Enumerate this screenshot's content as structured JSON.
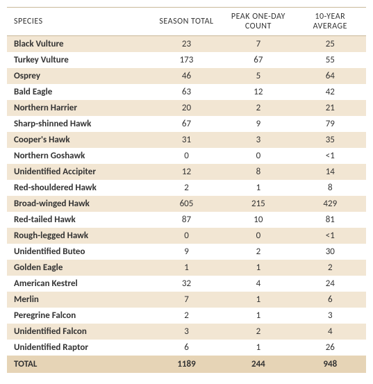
{
  "table": {
    "columns": [
      "SPECIES",
      "SEASON TOTAL",
      "PEAK ONE-DAY COUNT",
      "10-YEAR AVERAGE"
    ],
    "rows": [
      {
        "species": "Black Vulture",
        "season_total": "23",
        "peak": "7",
        "avg": "25"
      },
      {
        "species": "Turkey Vulture",
        "season_total": "173",
        "peak": "67",
        "avg": "55"
      },
      {
        "species": "Osprey",
        "season_total": "46",
        "peak": "5",
        "avg": "64"
      },
      {
        "species": "Bald Eagle",
        "season_total": "63",
        "peak": "12",
        "avg": "42"
      },
      {
        "species": "Northern Harrier",
        "season_total": "20",
        "peak": "2",
        "avg": "21"
      },
      {
        "species": "Sharp-shinned Hawk",
        "season_total": "67",
        "peak": "9",
        "avg": "79"
      },
      {
        "species": "Cooper's Hawk",
        "season_total": "31",
        "peak": "3",
        "avg": "35"
      },
      {
        "species": "Northern Goshawk",
        "season_total": "0",
        "peak": "0",
        "avg": "<1"
      },
      {
        "species": "Unidentified Accipiter",
        "season_total": "12",
        "peak": "8",
        "avg": "14"
      },
      {
        "species": "Red-shouldered Hawk",
        "season_total": "2",
        "peak": "1",
        "avg": "8"
      },
      {
        "species": "Broad-winged Hawk",
        "season_total": "605",
        "peak": "215",
        "avg": "429"
      },
      {
        "species": "Red-tailed Hawk",
        "season_total": "87",
        "peak": "10",
        "avg": "81"
      },
      {
        "species": "Rough-legged Hawk",
        "season_total": "0",
        "peak": "0",
        "avg": "<1"
      },
      {
        "species": "Unidentified Buteo",
        "season_total": "9",
        "peak": "2",
        "avg": "30"
      },
      {
        "species": "Golden Eagle",
        "season_total": "1",
        "peak": "1",
        "avg": "2"
      },
      {
        "species": "American Kestrel",
        "season_total": "32",
        "peak": "4",
        "avg": "24"
      },
      {
        "species": "Merlin",
        "season_total": "7",
        "peak": "1",
        "avg": "6"
      },
      {
        "species": "Peregrine Falcon",
        "season_total": "2",
        "peak": "1",
        "avg": "3"
      },
      {
        "species": "Unidentified Falcon",
        "season_total": "3",
        "peak": "2",
        "avg": "4"
      },
      {
        "species": "Unidentified Raptor",
        "season_total": "6",
        "peak": "1",
        "avg": "26"
      }
    ],
    "total": {
      "label": "TOTAL",
      "season_total": "1189",
      "peak": "244",
      "avg": "948"
    },
    "style": {
      "stripe_color": "#f2e6d3",
      "plain_color": "#ffffff",
      "total_row_color": "#e6d4b6",
      "header_border_color": "#c9b99a",
      "text_color": "#333333",
      "font_family": "Calibri",
      "header_fontsize_pt": 9,
      "body_fontsize_pt": 10,
      "column_widths_pct": [
        40,
        20,
        20,
        20
      ],
      "column_align": [
        "left",
        "center",
        "center",
        "center"
      ]
    }
  }
}
